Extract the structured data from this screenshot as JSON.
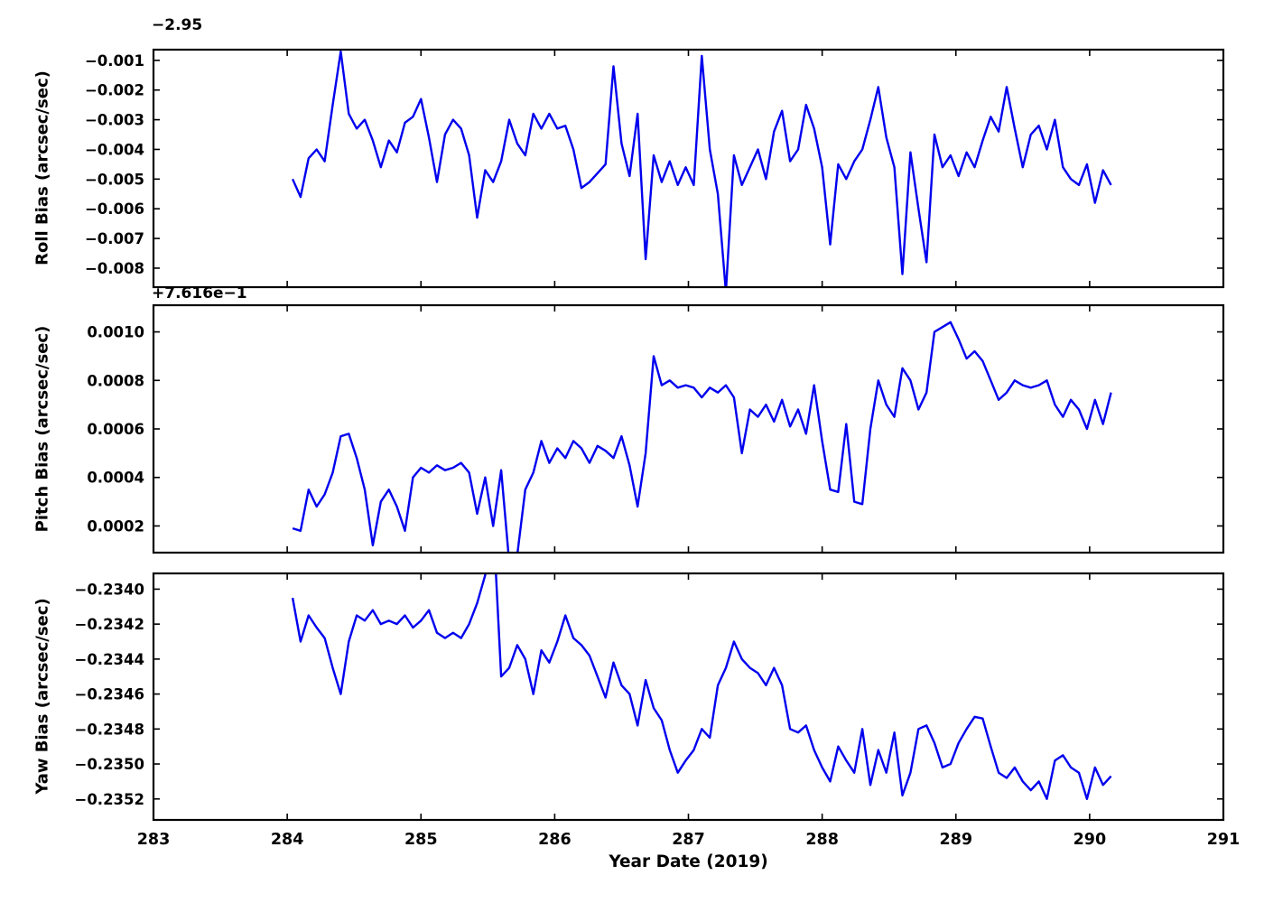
{
  "figure": {
    "background": "#ffffff",
    "line_color": "#0000ee",
    "spine_color": "#000000"
  },
  "x_axis": {
    "label": "Year Date (2019)",
    "ticks": [
      283,
      284,
      285,
      286,
      287,
      288,
      289,
      290,
      291
    ],
    "range": [
      283,
      291
    ]
  },
  "x_values": [
    284.04,
    284.1,
    284.16,
    284.22,
    284.28,
    284.34,
    284.4,
    284.46,
    284.52,
    284.58,
    284.64,
    284.7,
    284.76,
    284.82,
    284.88,
    284.94,
    285.0,
    285.06,
    285.12,
    285.18,
    285.24,
    285.3,
    285.36,
    285.42,
    285.48,
    285.54,
    285.6,
    285.66,
    285.72,
    285.78,
    285.84,
    285.9,
    285.96,
    286.02,
    286.08,
    286.14,
    286.2,
    286.26,
    286.32,
    286.38,
    286.44,
    286.5,
    286.56,
    286.62,
    286.68,
    286.74,
    286.8,
    286.86,
    286.92,
    286.98,
    287.04,
    287.1,
    287.16,
    287.22,
    287.28,
    287.34,
    287.4,
    287.46,
    287.52,
    287.58,
    287.64,
    287.7,
    287.76,
    287.82,
    287.88,
    287.94,
    288.0,
    288.06,
    288.12,
    288.18,
    288.24,
    288.3,
    288.36,
    288.42,
    288.48,
    288.54,
    288.6,
    288.66,
    288.72,
    288.78,
    288.84,
    288.9,
    288.96,
    289.02,
    289.08,
    289.14,
    289.2,
    289.26,
    289.32,
    289.38,
    289.44,
    289.5,
    289.56,
    289.62,
    289.68,
    289.74,
    289.8,
    289.86,
    289.92,
    289.98,
    290.04,
    290.1,
    290.16
  ],
  "chart_data": [
    {
      "type": "line",
      "name": "roll-bias",
      "ylabel": "Roll Bias (arcsec/sec)",
      "offset_text": "−2.95",
      "ylim": [
        -0.00864,
        -0.00064
      ],
      "yticks": [
        -0.008,
        -0.007,
        -0.006,
        -0.005,
        -0.004,
        -0.003,
        -0.002,
        -0.001
      ],
      "ytick_decimals": 3,
      "y": [
        -0.005,
        -0.0056,
        -0.0043,
        -0.004,
        -0.0044,
        -0.0025,
        -0.0007,
        -0.0028,
        -0.0033,
        -0.003,
        -0.0037,
        -0.0046,
        -0.0037,
        -0.0041,
        -0.0031,
        -0.0029,
        -0.0023,
        -0.0036,
        -0.0051,
        -0.0035,
        -0.003,
        -0.0033,
        -0.0042,
        -0.0063,
        -0.0047,
        -0.0051,
        -0.0044,
        -0.003,
        -0.0038,
        -0.0042,
        -0.0028,
        -0.0033,
        -0.0028,
        -0.0033,
        -0.0032,
        -0.004,
        -0.0053,
        -0.0051,
        -0.0048,
        -0.0045,
        -0.0012,
        -0.0038,
        -0.0049,
        -0.0028,
        -0.0077,
        -0.0042,
        -0.0051,
        -0.0044,
        -0.0052,
        -0.0046,
        -0.0052,
        -0.00085,
        -0.004,
        -0.0055,
        -0.0088,
        -0.0042,
        -0.0052,
        -0.0046,
        -0.004,
        -0.005,
        -0.0034,
        -0.0027,
        -0.0044,
        -0.004,
        -0.0025,
        -0.0033,
        -0.0046,
        -0.0072,
        -0.0045,
        -0.005,
        -0.0044,
        -0.004,
        -0.003,
        -0.0019,
        -0.0036,
        -0.0046,
        -0.0082,
        -0.0041,
        -0.006,
        -0.0078,
        -0.0035,
        -0.0046,
        -0.0042,
        -0.0049,
        -0.0041,
        -0.0046,
        -0.0037,
        -0.0029,
        -0.0034,
        -0.0019,
        -0.0033,
        -0.0046,
        -0.0035,
        -0.0032,
        -0.004,
        -0.003,
        -0.0046,
        -0.005,
        -0.0052,
        -0.0045,
        -0.0058,
        -0.0047,
        -0.0052
      ]
    },
    {
      "type": "line",
      "name": "pitch-bias",
      "ylabel": "Pitch Bias (arcsec/sec)",
      "offset_text": "+7.616e−1",
      "ylim": [
        9e-05,
        0.00111
      ],
      "yticks": [
        0.0002,
        0.0004,
        0.0006,
        0.0008,
        0.001
      ],
      "ytick_decimals": 4,
      "y": [
        0.00019,
        0.00018,
        0.00035,
        0.00028,
        0.00033,
        0.00042,
        0.00057,
        0.00058,
        0.00048,
        0.00035,
        0.00012,
        0.0003,
        0.00035,
        0.00028,
        0.00018,
        0.0004,
        0.00044,
        0.00042,
        0.00045,
        0.00043,
        0.00044,
        0.00046,
        0.00042,
        0.00025,
        0.0004,
        0.0002,
        0.00043,
        5e-05,
        8e-05,
        0.00035,
        0.00042,
        0.00055,
        0.00046,
        0.00052,
        0.00048,
        0.00055,
        0.00052,
        0.00046,
        0.00053,
        0.00051,
        0.00048,
        0.00057,
        0.00045,
        0.00028,
        0.0005,
        0.0009,
        0.00078,
        0.0008,
        0.00077,
        0.00078,
        0.00077,
        0.00073,
        0.00077,
        0.00075,
        0.00078,
        0.00073,
        0.0005,
        0.00068,
        0.00065,
        0.0007,
        0.00063,
        0.00072,
        0.00061,
        0.00068,
        0.00058,
        0.00078,
        0.00055,
        0.00035,
        0.00034,
        0.00062,
        0.0003,
        0.00029,
        0.0006,
        0.0008,
        0.0007,
        0.00065,
        0.00085,
        0.0008,
        0.00068,
        0.00075,
        0.001,
        0.00102,
        0.00104,
        0.00097,
        0.00089,
        0.00092,
        0.00088,
        0.0008,
        0.00072,
        0.00075,
        0.0008,
        0.00078,
        0.00077,
        0.00078,
        0.0008,
        0.0007,
        0.00065,
        0.00072,
        0.00068,
        0.0006,
        0.00072,
        0.00062,
        0.00075
      ]
    },
    {
      "type": "line",
      "name": "yaw-bias",
      "ylabel": "Yaw Bias (arcsec/sec)",
      "offset_text": "",
      "ylim": [
        -0.23532,
        -0.23391
      ],
      "yticks": [
        -0.2352,
        -0.235,
        -0.2348,
        -0.2346,
        -0.2344,
        -0.2342,
        -0.234
      ],
      "ytick_decimals": 4,
      "y": [
        -0.23405,
        -0.2343,
        -0.23415,
        -0.23422,
        -0.23428,
        -0.23445,
        -0.2346,
        -0.2343,
        -0.23415,
        -0.23418,
        -0.23412,
        -0.2342,
        -0.23418,
        -0.2342,
        -0.23415,
        -0.23422,
        -0.23418,
        -0.23412,
        -0.23425,
        -0.23428,
        -0.23425,
        -0.23428,
        -0.2342,
        -0.23408,
        -0.23392,
        -0.2336,
        -0.2345,
        -0.23445,
        -0.23432,
        -0.2344,
        -0.2346,
        -0.23435,
        -0.23442,
        -0.2343,
        -0.23415,
        -0.23428,
        -0.23432,
        -0.23438,
        -0.2345,
        -0.23462,
        -0.23442,
        -0.23455,
        -0.2346,
        -0.23478,
        -0.23452,
        -0.23468,
        -0.23475,
        -0.23492,
        -0.23505,
        -0.23498,
        -0.23492,
        -0.2348,
        -0.23485,
        -0.23455,
        -0.23445,
        -0.2343,
        -0.2344,
        -0.23445,
        -0.23448,
        -0.23455,
        -0.23445,
        -0.23455,
        -0.2348,
        -0.23482,
        -0.23478,
        -0.23492,
        -0.23502,
        -0.2351,
        -0.2349,
        -0.23498,
        -0.23505,
        -0.2348,
        -0.23512,
        -0.23492,
        -0.23505,
        -0.23482,
        -0.23518,
        -0.23505,
        -0.2348,
        -0.23478,
        -0.23488,
        -0.23502,
        -0.235,
        -0.23488,
        -0.2348,
        -0.23473,
        -0.23474,
        -0.2349,
        -0.23505,
        -0.23508,
        -0.23502,
        -0.2351,
        -0.23515,
        -0.2351,
        -0.2352,
        -0.23498,
        -0.23495,
        -0.23502,
        -0.23505,
        -0.2352,
        -0.23502,
        -0.23512,
        -0.23507
      ]
    }
  ]
}
